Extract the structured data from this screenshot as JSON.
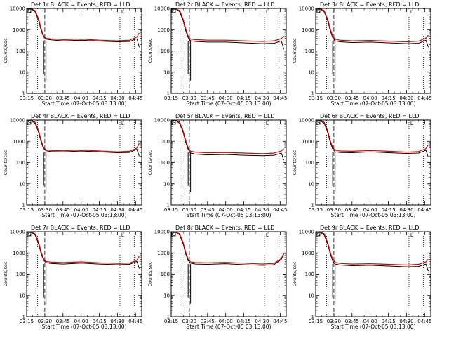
{
  "chart_data": [
    {
      "type": "line",
      "title": "Det 1r BLACK = Events, RED = LLD",
      "xlabel": "Start Time (07-Oct-05 03:13:00)",
      "ylabel": "Counts/sec",
      "yscale": "log",
      "ylim": [
        1,
        10000
      ],
      "xlim": [
        "03:15",
        "04:50"
      ],
      "x_tick_labels": [
        "03:15",
        "03:30",
        "03:45",
        "04:00",
        "04:15",
        "04:30",
        "04:45"
      ],
      "y_tick_labels": [
        "1",
        "10",
        "100",
        "1000",
        "10000"
      ],
      "annotations": {
        "box_left_label": "S",
        "box_right_label": "L",
        "vertical_lines": [
          "03:24",
          "03:30",
          "04:32",
          "04:44"
        ]
      },
      "series": [
        {
          "name": "BLACK",
          "color": "#000000",
          "x": [
            "03:18",
            "03:22",
            "03:25",
            "03:27",
            "03:29",
            "03:31",
            "03:35",
            "03:45",
            "04:00",
            "04:15",
            "04:30",
            "04:40",
            "04:46",
            "04:48"
          ],
          "values": [
            12000,
            7000,
            2500,
            900,
            450,
            360,
            330,
            300,
            320,
            290,
            270,
            280,
            380,
            150
          ]
        },
        {
          "name": "RED",
          "color": "#dd0000",
          "x": [
            "03:18",
            "03:22",
            "03:25",
            "03:27",
            "03:29",
            "03:31",
            "03:35",
            "03:45",
            "04:00",
            "04:15",
            "04:30",
            "04:40",
            "04:46",
            "04:48"
          ],
          "values": [
            12000,
            8000,
            3000,
            1100,
            520,
            400,
            370,
            340,
            360,
            320,
            300,
            320,
            450,
            700
          ]
        }
      ]
    },
    {
      "type": "line",
      "title": "Det 2r BLACK = Events, RED = LLD",
      "xlabel": "Start Time (07-Oct-05 03:13:00)",
      "ylabel": "Counts/sec",
      "yscale": "log",
      "ylim": [
        1,
        10000
      ],
      "xlim": [
        "03:15",
        "04:50"
      ],
      "x_tick_labels": [
        "03:15",
        "03:30",
        "03:45",
        "04:00",
        "04:15",
        "04:30",
        "04:45"
      ],
      "y_tick_labels": [
        "1",
        "10",
        "100",
        "1000",
        "10000"
      ],
      "annotations": {
        "box_left_label": "S",
        "box_right_label": "L",
        "vertical_lines": [
          "03:24",
          "03:30",
          "04:32",
          "04:44"
        ]
      },
      "series": [
        {
          "name": "BLACK",
          "color": "#000000",
          "x": [
            "03:18",
            "03:22",
            "03:25",
            "03:27",
            "03:29",
            "03:31",
            "03:35",
            "03:45",
            "04:00",
            "04:15",
            "04:30",
            "04:40",
            "04:46",
            "04:48"
          ],
          "values": [
            12000,
            7000,
            2500,
            900,
            420,
            300,
            280,
            260,
            260,
            240,
            220,
            230,
            300,
            120
          ]
        },
        {
          "name": "RED",
          "color": "#dd0000",
          "x": [
            "03:18",
            "03:22",
            "03:25",
            "03:27",
            "03:29",
            "03:31",
            "03:35",
            "03:45",
            "04:00",
            "04:15",
            "04:30",
            "04:40",
            "04:46",
            "04:48"
          ],
          "values": [
            12000,
            8000,
            3000,
            1100,
            500,
            360,
            340,
            320,
            320,
            300,
            280,
            300,
            380,
            500
          ]
        }
      ]
    },
    {
      "type": "line",
      "title": "Det 3r BLACK = Events, RED = LLD",
      "xlabel": "Start Time (07-Oct-05 03:13:00)",
      "ylabel": "Counts/sec",
      "yscale": "log",
      "ylim": [
        1,
        10000
      ],
      "xlim": [
        "03:15",
        "04:50"
      ],
      "x_tick_labels": [
        "03:15",
        "03:30",
        "03:45",
        "04:00",
        "04:15",
        "04:30",
        "04:45"
      ],
      "y_tick_labels": [
        "1",
        "10",
        "100",
        "1000",
        "10000"
      ],
      "annotations": {
        "box_left_label": "S",
        "box_right_label": "L",
        "vertical_lines": [
          "03:24",
          "03:30",
          "04:32",
          "04:44"
        ]
      },
      "series": [
        {
          "name": "BLACK",
          "color": "#000000",
          "x": [
            "03:18",
            "03:22",
            "03:25",
            "03:27",
            "03:29",
            "03:31",
            "03:35",
            "03:45",
            "04:00",
            "04:15",
            "04:30",
            "04:40",
            "04:46",
            "04:48"
          ],
          "values": [
            12000,
            7000,
            2500,
            900,
            420,
            300,
            270,
            250,
            260,
            240,
            220,
            230,
            320,
            150
          ]
        },
        {
          "name": "RED",
          "color": "#dd0000",
          "x": [
            "03:18",
            "03:22",
            "03:25",
            "03:27",
            "03:29",
            "03:31",
            "03:35",
            "03:45",
            "04:00",
            "04:15",
            "04:30",
            "04:40",
            "04:46",
            "04:48"
          ],
          "values": [
            12000,
            8000,
            3000,
            1100,
            500,
            360,
            320,
            300,
            310,
            290,
            270,
            290,
            400,
            550
          ]
        }
      ]
    },
    {
      "type": "line",
      "title": "Det 4r BLACK = Events, RED = LLD",
      "xlabel": "Start Time (07-Oct-05 03:13:00)",
      "ylabel": "Counts/sec",
      "yscale": "log",
      "ylim": [
        1,
        10000
      ],
      "xlim": [
        "03:15",
        "04:50"
      ],
      "x_tick_labels": [
        "03:15",
        "03:30",
        "03:45",
        "04:00",
        "04:15",
        "04:30",
        "04:45"
      ],
      "y_tick_labels": [
        "1",
        "10",
        "100",
        "1000",
        "10000"
      ],
      "annotations": {
        "box_left_label": "S",
        "box_right_label": "L",
        "vertical_lines": [
          "03:24",
          "03:30",
          "04:32",
          "04:44"
        ]
      },
      "series": [
        {
          "name": "BLACK",
          "color": "#000000",
          "x": [
            "03:18",
            "03:22",
            "03:25",
            "03:27",
            "03:29",
            "03:31",
            "03:35",
            "03:45",
            "04:00",
            "04:15",
            "04:30",
            "04:40",
            "04:46",
            "04:48"
          ],
          "values": [
            12000,
            7000,
            2500,
            900,
            450,
            360,
            330,
            320,
            350,
            320,
            290,
            300,
            420,
            200
          ]
        },
        {
          "name": "RED",
          "color": "#dd0000",
          "x": [
            "03:18",
            "03:22",
            "03:25",
            "03:27",
            "03:29",
            "03:31",
            "03:35",
            "03:45",
            "04:00",
            "04:15",
            "04:30",
            "04:40",
            "04:46",
            "04:48"
          ],
          "values": [
            12000,
            8000,
            3000,
            1100,
            520,
            400,
            370,
            360,
            390,
            350,
            320,
            340,
            480,
            800
          ]
        }
      ]
    },
    {
      "type": "line",
      "title": "Det 5r BLACK = Events, RED = LLD",
      "xlabel": "Start Time (07-Oct-05 03:13:00)",
      "ylabel": "Counts/sec",
      "yscale": "log",
      "ylim": [
        1,
        10000
      ],
      "xlim": [
        "03:15",
        "04:50"
      ],
      "x_tick_labels": [
        "03:15",
        "03:30",
        "03:45",
        "04:00",
        "04:15",
        "04:30",
        "04:45"
      ],
      "y_tick_labels": [
        "1",
        "10",
        "100",
        "1000",
        "10000"
      ],
      "annotations": {
        "box_left_label": "S",
        "box_right_label": "L",
        "vertical_lines": [
          "03:24",
          "03:30",
          "04:32",
          "04:44"
        ]
      },
      "series": [
        {
          "name": "BLACK",
          "color": "#000000",
          "x": [
            "03:18",
            "03:22",
            "03:25",
            "03:27",
            "03:29",
            "03:31",
            "03:35",
            "03:45",
            "04:00",
            "04:15",
            "04:30",
            "04:40",
            "04:46",
            "04:48"
          ],
          "values": [
            12000,
            7000,
            2500,
            900,
            420,
            280,
            250,
            230,
            240,
            220,
            210,
            220,
            280,
            130
          ]
        },
        {
          "name": "RED",
          "color": "#dd0000",
          "x": [
            "03:18",
            "03:22",
            "03:25",
            "03:27",
            "03:29",
            "03:31",
            "03:35",
            "03:45",
            "04:00",
            "04:15",
            "04:30",
            "04:40",
            "04:46",
            "04:48"
          ],
          "values": [
            12000,
            8000,
            3000,
            1100,
            500,
            340,
            310,
            290,
            300,
            280,
            260,
            280,
            350,
            450
          ]
        }
      ]
    },
    {
      "type": "line",
      "title": "Det 6r BLACK = Events, RED = LLD",
      "xlabel": "Start Time (07-Oct-05 03:13:00)",
      "ylabel": "Counts/sec",
      "yscale": "log",
      "ylim": [
        1,
        10000
      ],
      "xlim": [
        "03:15",
        "04:50"
      ],
      "x_tick_labels": [
        "03:15",
        "03:30",
        "03:45",
        "04:00",
        "04:15",
        "04:30",
        "04:45"
      ],
      "y_tick_labels": [
        "1",
        "10",
        "100",
        "1000",
        "10000"
      ],
      "annotations": {
        "box_left_label": "S",
        "box_right_label": "L",
        "vertical_lines": [
          "03:24",
          "03:30",
          "04:32",
          "04:44"
        ]
      },
      "series": [
        {
          "name": "BLACK",
          "color": "#000000",
          "x": [
            "03:18",
            "03:22",
            "03:25",
            "03:27",
            "03:29",
            "03:31",
            "03:35",
            "03:45",
            "04:00",
            "04:15",
            "04:30",
            "04:40",
            "04:46",
            "04:48"
          ],
          "values": [
            12000,
            7000,
            2500,
            900,
            430,
            320,
            300,
            290,
            320,
            290,
            270,
            280,
            380,
            180
          ]
        },
        {
          "name": "RED",
          "color": "#dd0000",
          "x": [
            "03:18",
            "03:22",
            "03:25",
            "03:27",
            "03:29",
            "03:31",
            "03:35",
            "03:45",
            "04:00",
            "04:15",
            "04:30",
            "04:40",
            "04:46",
            "04:48"
          ],
          "values": [
            12000,
            8000,
            3000,
            1100,
            510,
            380,
            350,
            340,
            370,
            340,
            310,
            330,
            450,
            700
          ]
        }
      ]
    },
    {
      "type": "line",
      "title": "Det 7r BLACK = Events, RED = LLD",
      "xlabel": "Start Time (07-Oct-05 03:13:00)",
      "ylabel": "Counts/sec",
      "yscale": "log",
      "ylim": [
        1,
        10000
      ],
      "xlim": [
        "03:15",
        "04:50"
      ],
      "x_tick_labels": [
        "03:15",
        "03:30",
        "03:45",
        "04:00",
        "04:15",
        "04:30",
        "04:45"
      ],
      "y_tick_labels": [
        "1",
        "10",
        "100",
        "1000",
        "10000"
      ],
      "annotations": {
        "box_left_label": "S",
        "box_right_label": "L",
        "vertical_lines": [
          "03:24",
          "03:30",
          "04:32",
          "04:44"
        ]
      },
      "series": [
        {
          "name": "BLACK",
          "color": "#000000",
          "x": [
            "03:18",
            "03:22",
            "03:25",
            "03:27",
            "03:29",
            "03:31",
            "03:35",
            "03:45",
            "04:00",
            "04:15",
            "04:30",
            "04:40",
            "04:46",
            "04:48"
          ],
          "values": [
            12000,
            7000,
            2500,
            900,
            450,
            350,
            320,
            300,
            330,
            300,
            280,
            290,
            400,
            180
          ]
        },
        {
          "name": "RED",
          "color": "#dd0000",
          "x": [
            "03:18",
            "03:22",
            "03:25",
            "03:27",
            "03:29",
            "03:31",
            "03:35",
            "03:45",
            "04:00",
            "04:15",
            "04:30",
            "04:40",
            "04:46",
            "04:48"
          ],
          "values": [
            12000,
            8000,
            3000,
            1100,
            520,
            400,
            370,
            350,
            380,
            340,
            320,
            330,
            460,
            700
          ]
        }
      ]
    },
    {
      "type": "line",
      "title": "Det 8r BLACK = Events, RED = LLD",
      "xlabel": "Start Time (07-Oct-05 03:13:00)",
      "ylabel": "Counts/sec",
      "yscale": "log",
      "ylim": [
        1,
        10000
      ],
      "xlim": [
        "03:15",
        "04:50"
      ],
      "x_tick_labels": [
        "03:15",
        "03:30",
        "03:45",
        "04:00",
        "04:15",
        "04:30",
        "04:45"
      ],
      "y_tick_labels": [
        "1",
        "10",
        "100",
        "1000",
        "10000"
      ],
      "annotations": {
        "box_left_label": "S",
        "box_right_label": "L",
        "vertical_lines": [
          "03:24",
          "03:30",
          "04:32",
          "04:44"
        ]
      },
      "series": [
        {
          "name": "BLACK",
          "color": "#000000",
          "x": [
            "03:18",
            "03:22",
            "03:25",
            "03:27",
            "03:29",
            "03:31",
            "03:35",
            "03:45",
            "04:00",
            "04:15",
            "04:30",
            "04:40",
            "04:46",
            "04:48"
          ],
          "values": [
            12000,
            7000,
            2500,
            900,
            430,
            330,
            300,
            290,
            310,
            280,
            260,
            280,
            500,
            900
          ]
        },
        {
          "name": "RED",
          "color": "#dd0000",
          "x": [
            "03:18",
            "03:22",
            "03:25",
            "03:27",
            "03:29",
            "03:31",
            "03:35",
            "03:45",
            "04:00",
            "04:15",
            "04:30",
            "04:40",
            "04:46",
            "04:48"
          ],
          "values": [
            12000,
            8000,
            3000,
            1100,
            510,
            380,
            350,
            340,
            360,
            330,
            300,
            320,
            550,
            1000
          ]
        }
      ]
    },
    {
      "type": "line",
      "title": "Det 9r BLACK = Events, RED = LLD",
      "xlabel": "Start Time (07-Oct-05 03:13:00)",
      "ylabel": "Counts/sec",
      "yscale": "log",
      "ylim": [
        1,
        10000
      ],
      "xlim": [
        "03:15",
        "04:50"
      ],
      "x_tick_labels": [
        "03:15",
        "03:30",
        "03:45",
        "04:00",
        "04:15",
        "04:30",
        "04:45"
      ],
      "y_tick_labels": [
        "1",
        "10",
        "100",
        "1000",
        "10000"
      ],
      "annotations": {
        "box_left_label": "S",
        "box_right_label": "L",
        "vertical_lines": [
          "03:24",
          "03:30",
          "04:32",
          "04:44"
        ]
      },
      "series": [
        {
          "name": "BLACK",
          "color": "#000000",
          "x": [
            "03:18",
            "03:22",
            "03:25",
            "03:27",
            "03:29",
            "03:31",
            "03:35",
            "03:45",
            "04:00",
            "04:15",
            "04:30",
            "04:40",
            "04:46",
            "04:48"
          ],
          "values": [
            12000,
            7000,
            2500,
            900,
            420,
            300,
            270,
            250,
            260,
            240,
            220,
            230,
            300,
            140
          ]
        },
        {
          "name": "RED",
          "color": "#dd0000",
          "x": [
            "03:18",
            "03:22",
            "03:25",
            "03:27",
            "03:29",
            "03:31",
            "03:35",
            "03:45",
            "04:00",
            "04:15",
            "04:30",
            "04:40",
            "04:46",
            "04:48"
          ],
          "values": [
            12000,
            8000,
            3000,
            1100,
            500,
            360,
            320,
            300,
            310,
            290,
            270,
            290,
            380,
            500
          ]
        }
      ]
    }
  ]
}
